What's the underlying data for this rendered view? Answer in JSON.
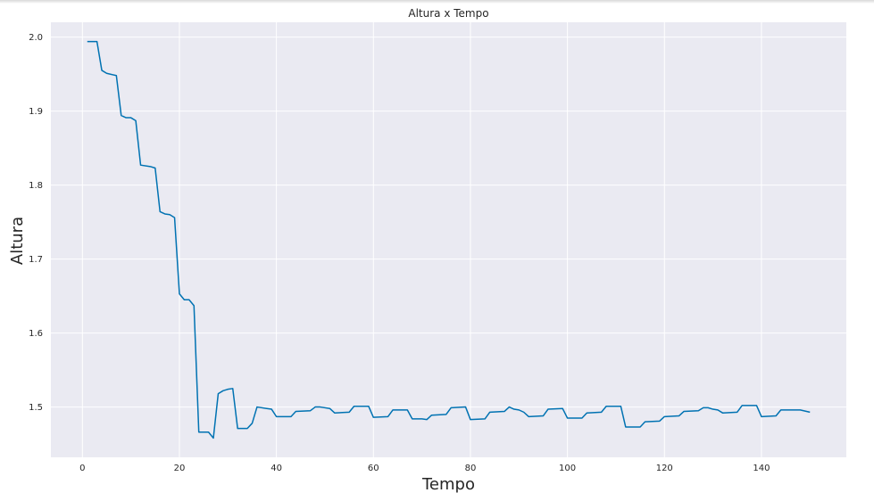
{
  "chart_data": {
    "type": "line",
    "title": "Altura x Tempo",
    "xlabel": "Tempo",
    "ylabel": "Altura",
    "xlim": [
      -6.5,
      157.5
    ],
    "ylim": [
      1.432,
      2.02
    ],
    "xticks": [
      0,
      20,
      40,
      60,
      80,
      100,
      120,
      140
    ],
    "yticks": [
      1.5,
      1.6,
      1.7,
      1.8,
      1.9,
      2.0
    ],
    "ytick_labels": [
      "1.5",
      "1.6",
      "1.7",
      "1.8",
      "1.9",
      "2.0"
    ],
    "grid": true,
    "background": "#eaeaf2",
    "line_color": "#0072b2",
    "series": [
      {
        "x": [
          1,
          3,
          4,
          5,
          7,
          8,
          9,
          10,
          11,
          12,
          14,
          15,
          16,
          17,
          18,
          19,
          20,
          21,
          22,
          23,
          24,
          26,
          27,
          28,
          29,
          30,
          31,
          32,
          34,
          35,
          36,
          38,
          39,
          40,
          43,
          44,
          47,
          48,
          49,
          51,
          52,
          55,
          56,
          59,
          60,
          63,
          64,
          67,
          68,
          70,
          71,
          72,
          75,
          76,
          79,
          80,
          83,
          84,
          87,
          88,
          89,
          90,
          91,
          92,
          95,
          96,
          99,
          100,
          103,
          104,
          107,
          108,
          111,
          112,
          115,
          116,
          119,
          120,
          123,
          124,
          127,
          128,
          129,
          130,
          131,
          132,
          135,
          136,
          139,
          140,
          143,
          144,
          147,
          148,
          150
        ],
        "y": [
          1.994,
          1.994,
          1.955,
          1.951,
          1.948,
          1.894,
          1.891,
          1.891,
          1.887,
          1.827,
          1.825,
          1.823,
          1.764,
          1.761,
          1.76,
          1.756,
          1.653,
          1.645,
          1.645,
          1.637,
          1.466,
          1.466,
          1.458,
          1.518,
          1.522,
          1.524,
          1.525,
          1.471,
          1.471,
          1.478,
          1.5,
          1.498,
          1.497,
          1.487,
          1.487,
          1.494,
          1.495,
          1.5,
          1.5,
          1.498,
          1.492,
          1.493,
          1.501,
          1.501,
          1.486,
          1.487,
          1.496,
          1.496,
          1.484,
          1.484,
          1.483,
          1.489,
          1.49,
          1.499,
          1.5,
          1.483,
          1.484,
          1.493,
          1.494,
          1.5,
          1.497,
          1.496,
          1.493,
          1.487,
          1.488,
          1.497,
          1.498,
          1.485,
          1.485,
          1.492,
          1.493,
          1.501,
          1.501,
          1.473,
          1.473,
          1.48,
          1.481,
          1.487,
          1.488,
          1.494,
          1.495,
          1.499,
          1.499,
          1.497,
          1.496,
          1.492,
          1.493,
          1.502,
          1.502,
          1.487,
          1.488,
          1.496,
          1.496,
          1.496,
          1.493
        ]
      }
    ]
  }
}
